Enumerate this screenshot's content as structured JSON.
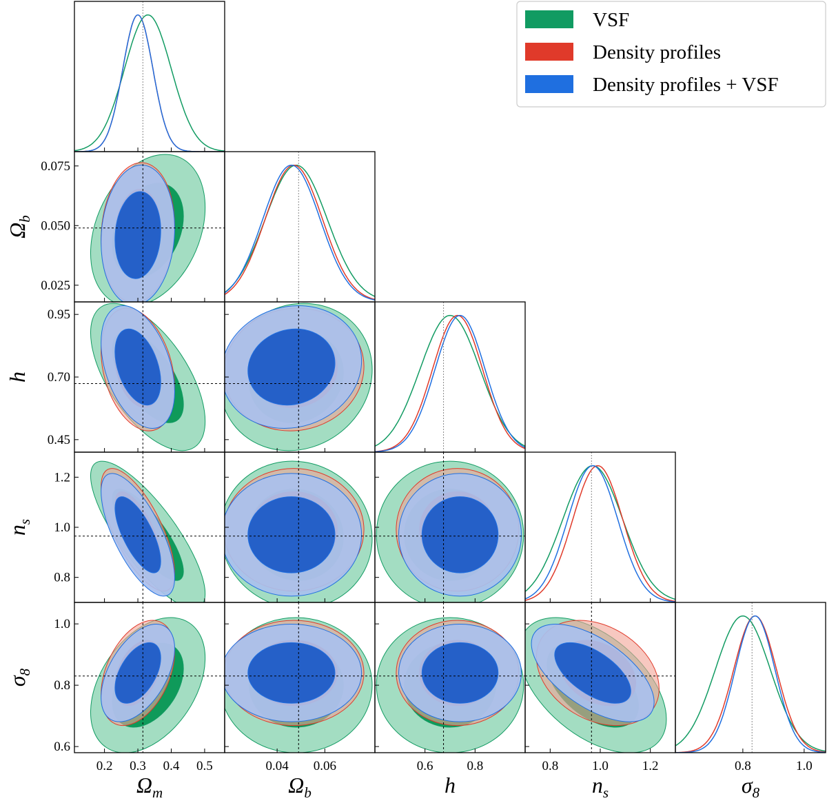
{
  "chart_data": {
    "type": "corner",
    "legend": "upper right",
    "params": [
      {
        "symbol": "Ω",
        "subscript": "m",
        "lim": [
          0.11,
          0.56
        ],
        "truth": 0.315,
        "xticks": [
          0.2,
          0.3,
          0.4,
          0.5
        ],
        "yticks": []
      },
      {
        "symbol": "Ω",
        "subscript": "b",
        "lim": [
          0.018,
          0.081
        ],
        "truth": 0.049,
        "xticks": [
          0.04,
          0.06
        ],
        "yticks": [
          {
            "value": 0.025,
            "label": "0.025"
          },
          {
            "value": 0.05,
            "label": "0.050"
          },
          {
            "value": 0.075,
            "label": "0.075"
          }
        ]
      },
      {
        "symbol": "h",
        "subscript": null,
        "lim": [
          0.4,
          1.0
        ],
        "truth": 0.674,
        "xticks": [
          0.6,
          0.8
        ],
        "yticks": [
          0.45,
          {
            "value": 0.7,
            "label": "0.70"
          },
          0.95
        ]
      },
      {
        "symbol": "n",
        "subscript": "s",
        "lim": [
          0.7,
          1.3
        ],
        "truth": 0.965,
        "xticks": [
          0.8,
          {
            "value": 1,
            "label": "1.0"
          },
          1.2
        ],
        "yticks": [
          0.8,
          {
            "value": 1,
            "label": "1.0"
          },
          1.2
        ]
      },
      {
        "symbol": "σ",
        "subscript": "8",
        "lim": [
          0.58,
          1.07
        ],
        "truth": 0.83,
        "xticks": [
          0.8,
          {
            "value": 1,
            "label": "1.0"
          }
        ],
        "yticks": [
          0.6,
          0.8,
          {
            "value": 1,
            "label": "1.0"
          }
        ]
      }
    ],
    "series": [
      {
        "name": "VSF",
        "color": "#119b62",
        "mean": [
          0.33,
          0.048,
          0.7,
          0.97,
          0.8
        ],
        "sd": [
          0.07,
          0.013,
          0.12,
          0.12,
          0.09
        ],
        "corr": [
          0.3,
          -0.6,
          0.1,
          -0.8,
          -0.05,
          0,
          0.4,
          0,
          0,
          -0.5
        ]
      },
      {
        "name": "Density profiles",
        "color": "#e03a2a",
        "mean": [
          0.3,
          0.047,
          0.73,
          0.99,
          0.84
        ],
        "sd": [
          0.045,
          0.012,
          0.1,
          0.1,
          0.07
        ],
        "corr": [
          0.1,
          -0.3,
          0.05,
          -0.7,
          0,
          0,
          0.4,
          0,
          0,
          -0.3
        ]
      },
      {
        "name": "Density profiles + VSF",
        "color": "#1f6fe0",
        "mean": [
          0.3,
          0.046,
          0.74,
          0.97,
          0.84
        ],
        "sd": [
          0.045,
          0.012,
          0.1,
          0.1,
          0.065
        ],
        "corr": [
          0.1,
          -0.4,
          0.1,
          -0.7,
          0,
          0,
          0.5,
          0,
          0,
          -0.6
        ]
      }
    ]
  }
}
